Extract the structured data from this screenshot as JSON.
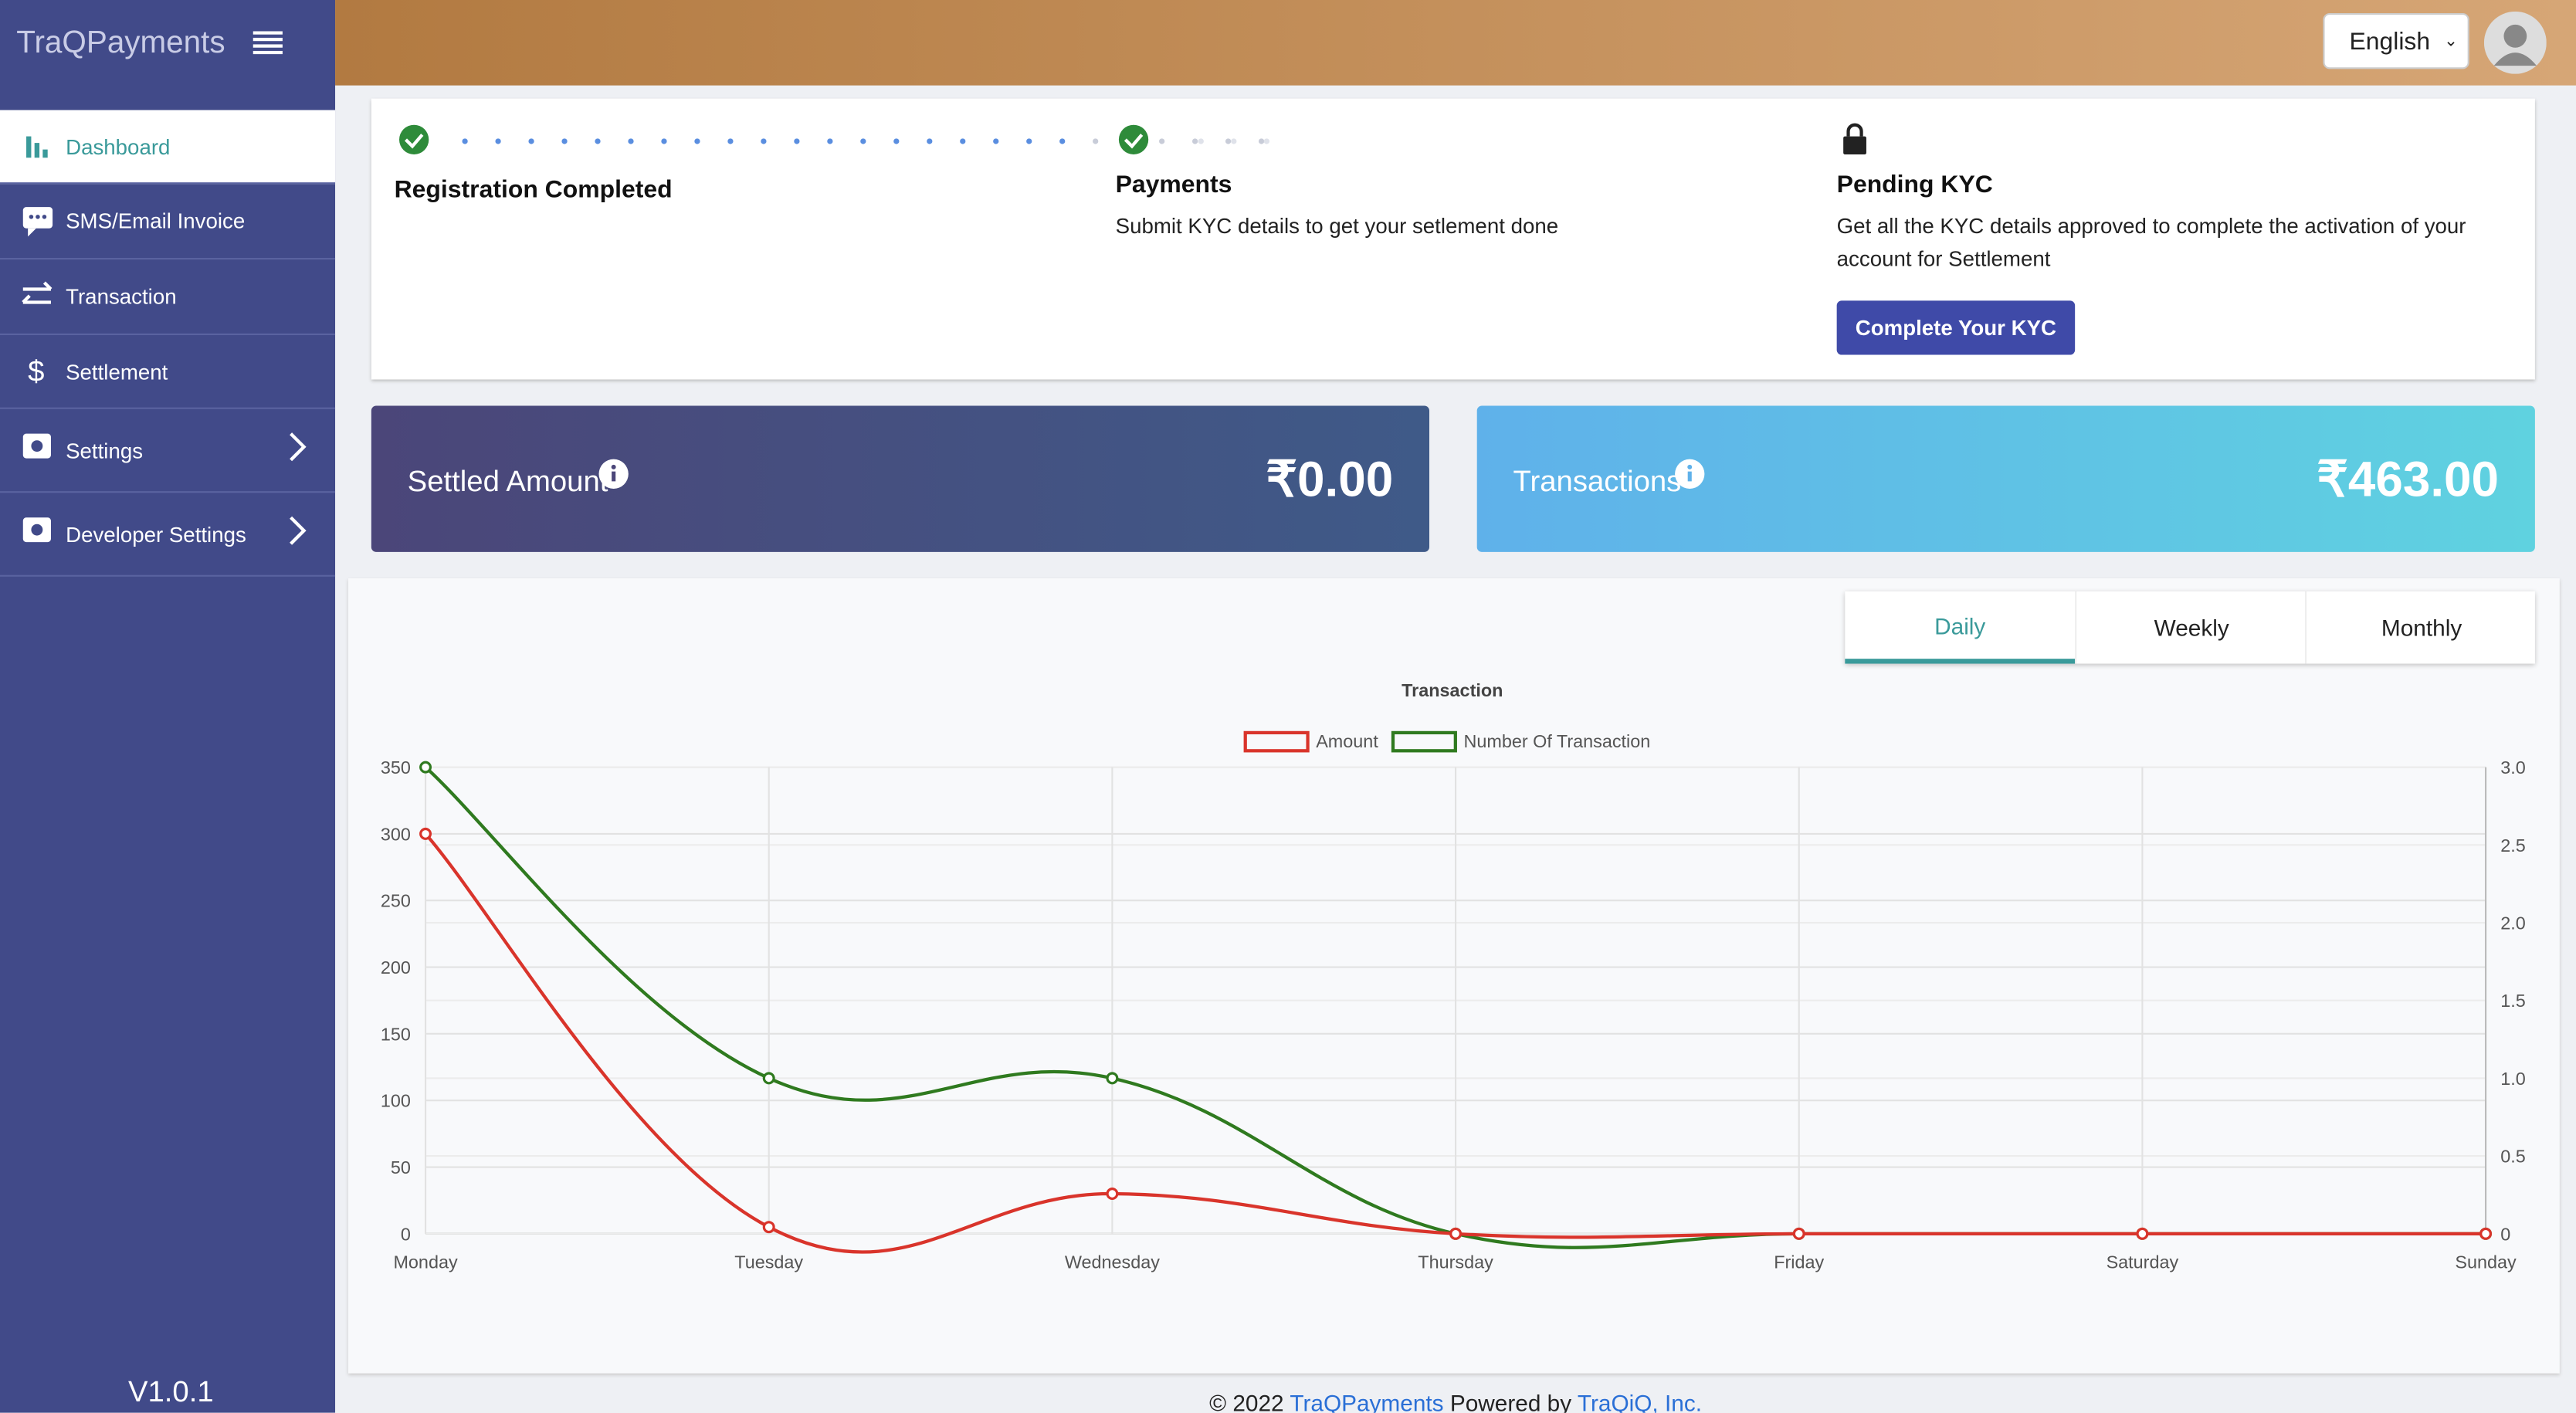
{
  "sidebar": {
    "logo": "TraQPayments",
    "items": [
      "Dashboard",
      "SMS/Email Invoice",
      "Transaction",
      "Settlement",
      "Settings",
      "Developer Settings"
    ],
    "version": "V1.0.1"
  },
  "header": {
    "language": "English"
  },
  "steps": [
    {
      "title": "Registration Completed"
    },
    {
      "title": "Payments",
      "text": "Submit KYC details to get your setlement done"
    },
    {
      "title": "Pending KYC",
      "text": "Get all the KYC details approved to complete the activation of your account for Settlement",
      "button": "Complete Your KYC"
    }
  ],
  "cards": [
    {
      "label": "Settled Amount",
      "value": "₹0.00"
    },
    {
      "label": "Transactions",
      "value": "₹463.00"
    }
  ],
  "tabs": [
    "Daily",
    "Weekly",
    "Monthly"
  ],
  "chart": {
    "type": "line",
    "title": "Transaction",
    "categories": [
      "Monday",
      "Tuesday",
      "Wednesday",
      "Thursday",
      "Friday",
      "Saturday",
      "Sunday"
    ],
    "series": [
      {
        "name": "Amount",
        "color": "#d9342b",
        "values": [
          300,
          5,
          30,
          0,
          0,
          0,
          0
        ]
      },
      {
        "name": "Number Of Transaction",
        "color": "#2f7a1f",
        "axis": "y2",
        "values": [
          3,
          1,
          1,
          0,
          0,
          0,
          0
        ]
      }
    ],
    "ylim": [
      0,
      350
    ],
    "yticks": [
      0,
      50,
      100,
      150,
      200,
      250,
      300,
      350
    ],
    "y2lim": [
      0,
      3
    ],
    "y2ticks": [
      0,
      0.5,
      {
        "value": 1,
        "label": "1.0"
      },
      1.5,
      {
        "value": 2,
        "label": "2.0"
      },
      2.5,
      {
        "value": 3,
        "label": "3.0"
      }
    ],
    "grid": true
  },
  "footer": {
    "prefix": "© 2022",
    "brand": "TraQPayments",
    "middle": "Powered by",
    "company": "TraQiQ, Inc."
  }
}
